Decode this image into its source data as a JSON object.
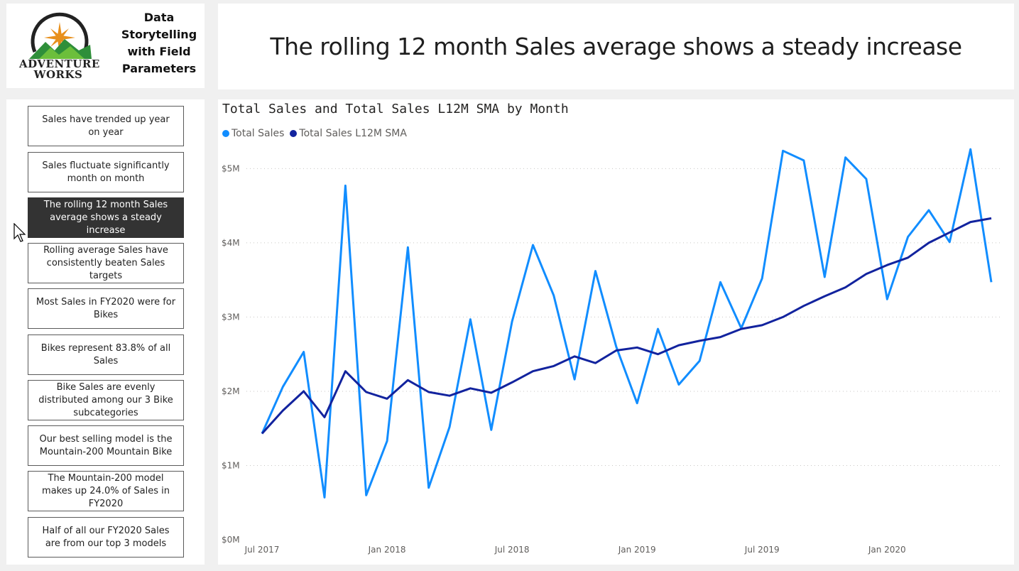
{
  "logo": {
    "wordmark_line1": "ADVENTURE",
    "wordmark_line2": "WORKS",
    "title": "Data Storytelling with Field Parameters"
  },
  "page_title": "The rolling 12 month Sales average shows a steady increase",
  "nav": {
    "active_index": 2,
    "items": [
      "Sales have trended up year on year",
      "Sales fluctuate significantly month on month",
      "The rolling 12 month Sales average shows a steady increase",
      "Rolling average Sales have consistently beaten Sales targets",
      "Most Sales in FY2020 were for Bikes",
      "Bikes represent 83.8% of all Sales",
      "Bike Sales are evenly distributed among our 3 Bike subcategories",
      "Our best selling model is the Mountain-200 Mountain Bike",
      "The Mountain-200 model makes up 24.0% of Sales in FY2020",
      "Half of all our FY2020 Sales are from our top 3 models"
    ]
  },
  "colors": {
    "total_sales": "#118dff",
    "sma": "#12239e",
    "active_button": "#333333"
  },
  "chart_data": {
    "type": "line",
    "title": "Total Sales and Total Sales L12M SMA by Month",
    "legend_position": "top-left",
    "x_labels": [
      "Jul 2017",
      "Aug 2017",
      "Sep 2017",
      "Oct 2017",
      "Nov 2017",
      "Dec 2017",
      "Jan 2018",
      "Feb 2018",
      "Mar 2018",
      "Apr 2018",
      "May 2018",
      "Jun 2018",
      "Jul 2018",
      "Aug 2018",
      "Sep 2018",
      "Oct 2018",
      "Nov 2018",
      "Dec 2018",
      "Jan 2019",
      "Feb 2019",
      "Mar 2019",
      "Apr 2019",
      "May 2019",
      "Jun 2019",
      "Jul 2019",
      "Aug 2019",
      "Sep 2019",
      "Oct 2019",
      "Nov 2019",
      "Dec 2019",
      "Jan 2020",
      "Feb 2020",
      "Mar 2020",
      "Apr 2020",
      "May 2020",
      "Jun 2020"
    ],
    "x_tick_labels": [
      "Jul 2017",
      "Jan 2018",
      "Jul 2018",
      "Jan 2019",
      "Jul 2019",
      "Jan 2020"
    ],
    "x_tick_indices": [
      0,
      6,
      12,
      18,
      24,
      30
    ],
    "y_tick_labels": [
      "$0M",
      "$1M",
      "$2M",
      "$3M",
      "$4M",
      "$5M"
    ],
    "y_tick_values": [
      0,
      1,
      2,
      3,
      4,
      5
    ],
    "ylim": [
      0,
      5.3
    ],
    "y_unit": "$M",
    "series": [
      {
        "name": "Total Sales",
        "values": [
          1.43,
          2.06,
          2.53,
          0.57,
          4.77,
          0.6,
          1.33,
          3.94,
          0.7,
          1.52,
          2.97,
          1.48,
          2.94,
          3.97,
          3.29,
          2.16,
          3.62,
          2.6,
          1.84,
          2.84,
          2.09,
          2.41,
          3.47,
          2.85,
          3.52,
          5.24,
          5.11,
          3.54,
          5.15,
          4.86,
          3.24,
          4.08,
          4.44,
          4.01,
          5.26,
          3.47
        ]
      },
      {
        "name": "Total Sales L12M SMA",
        "values": [
          1.43,
          1.74,
          2.0,
          1.65,
          2.27,
          1.99,
          1.9,
          2.15,
          1.99,
          1.94,
          2.04,
          1.98,
          2.12,
          2.27,
          2.34,
          2.47,
          2.38,
          2.55,
          2.59,
          2.5,
          2.62,
          2.68,
          2.73,
          2.84,
          2.89,
          3.0,
          3.15,
          3.28,
          3.4,
          3.58,
          3.7,
          3.8,
          4.0,
          4.14,
          4.28,
          4.33
        ]
      }
    ]
  }
}
